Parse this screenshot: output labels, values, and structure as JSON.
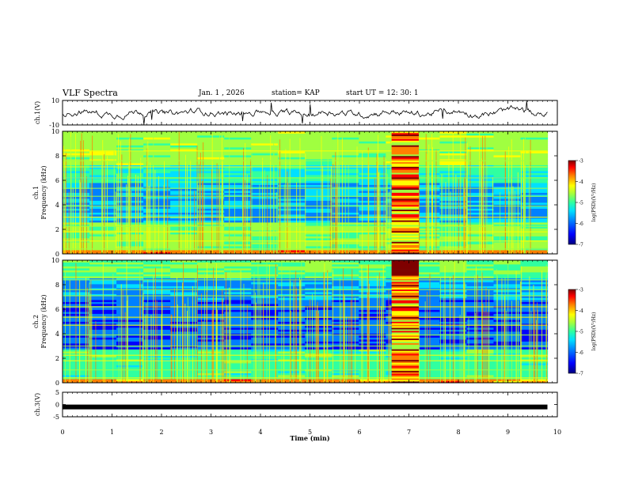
{
  "header": {
    "title": "VLF Spectra",
    "date": "Jan. 1 , 2026",
    "station": "station= KAP",
    "start": "start  UT =   12: 30: 1"
  },
  "colors": {
    "background": "#ffffff",
    "ink": "#000000",
    "colormap": [
      "#00007f",
      "#0000ff",
      "#0080ff",
      "#00e0ff",
      "#30ffa0",
      "#a0ff40",
      "#ffff00",
      "#ff8000",
      "#ff0000",
      "#7f0000"
    ]
  },
  "chart_data": [
    {
      "id": "ch1-timeseries",
      "type": "line",
      "ylabel": "ch.1(V)",
      "ylim": [
        -10,
        10
      ],
      "ytick_labels": [
        "10",
        "-10"
      ],
      "xlim": [
        0,
        10
      ],
      "data_end_min": 9.8,
      "description_values": "noisy waveform around ~0 V, amplitude mostly between -6 and 6 V"
    },
    {
      "id": "ch1-spectrogram",
      "type": "heatmap",
      "ylabel": [
        "ch.1",
        "Frequency (kHz)"
      ],
      "ylim": [
        0,
        10
      ],
      "ytick_labels": [
        "0",
        "2",
        "4",
        "6",
        "8",
        "10"
      ],
      "xlim": [
        0,
        10
      ],
      "data_end_min": 9.8,
      "burst_interval_min": [
        6.65,
        7.2
      ],
      "colorbar": {
        "label": "log(PSD)(V²/Hz)",
        "range": [
          -7,
          -3
        ],
        "tick_labels": [
          "-3",
          "-4",
          "-5",
          "-6",
          "-7"
        ]
      }
    },
    {
      "id": "ch2-spectrogram",
      "type": "heatmap",
      "ylabel": [
        "ch.2",
        "Frequency (kHz)"
      ],
      "ylim": [
        0,
        10
      ],
      "ytick_labels": [
        "0",
        "2",
        "4",
        "6",
        "8",
        "10"
      ],
      "xlim": [
        0,
        10
      ],
      "data_end_min": 9.8,
      "burst_interval_min": [
        6.65,
        7.2
      ],
      "colorbar": {
        "label": "log(PSD)(V²/Hz)",
        "range": [
          -7,
          -3
        ],
        "tick_labels": [
          "-3",
          "-4",
          "-5",
          "-6",
          "-7"
        ]
      }
    },
    {
      "id": "ch3-timeseries",
      "type": "line",
      "ylabel": "ch.3(V)",
      "ylim": [
        -5,
        5
      ],
      "ytick_labels": [
        "5",
        "0",
        "-5"
      ],
      "xlim": [
        0,
        10
      ],
      "data_end_min": 9.8,
      "level_v": -1
    }
  ],
  "xaxis": {
    "label": "Time (min)",
    "tick_labels": [
      "0",
      "1",
      "2",
      "3",
      "4",
      "5",
      "6",
      "7",
      "8",
      "9",
      "10"
    ]
  }
}
